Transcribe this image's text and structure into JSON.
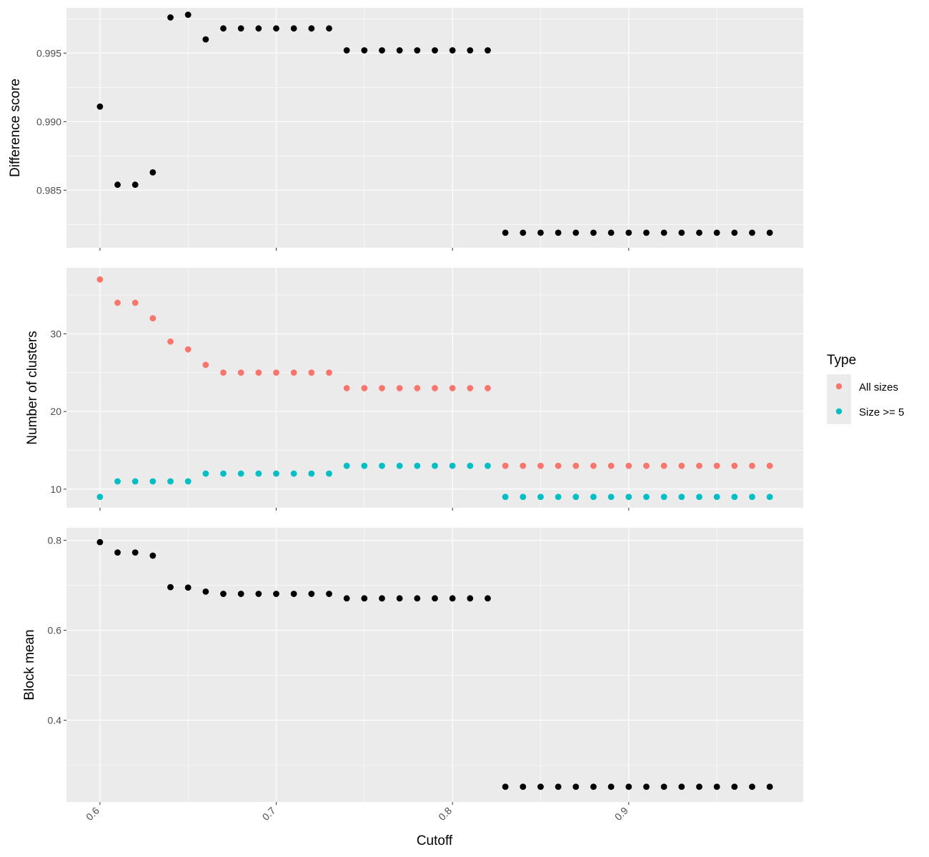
{
  "chart_data": [
    {
      "type": "scatter",
      "panel": "difference",
      "ylabel": "Difference score",
      "yticks": [
        0.985,
        0.99,
        0.995
      ],
      "ytick_labels": [
        "0.985",
        "0.990",
        "0.995"
      ],
      "ylim": [
        0.9808,
        0.9983
      ],
      "color": "#000000",
      "x": [
        0.6,
        0.61,
        0.62,
        0.63,
        0.64,
        0.65,
        0.66,
        0.67,
        0.68,
        0.69,
        0.7,
        0.71,
        0.72,
        0.73,
        0.74,
        0.75,
        0.76,
        0.77,
        0.78,
        0.79,
        0.8,
        0.81,
        0.82,
        0.83,
        0.84,
        0.85,
        0.86,
        0.87,
        0.88,
        0.89,
        0.9,
        0.91,
        0.92,
        0.93,
        0.94,
        0.95,
        0.96,
        0.97,
        0.98
      ],
      "y": [
        0.9911,
        0.9854,
        0.9854,
        0.9863,
        0.9976,
        0.9978,
        0.996,
        0.9968,
        0.9968,
        0.9968,
        0.9968,
        0.9968,
        0.9968,
        0.9968,
        0.9952,
        0.9952,
        0.9952,
        0.9952,
        0.9952,
        0.9952,
        0.9952,
        0.9952,
        0.9952,
        0.9819,
        0.9819,
        0.9819,
        0.9819,
        0.9819,
        0.9819,
        0.9819,
        0.9819,
        0.9819,
        0.9819,
        0.9819,
        0.9819,
        0.9819,
        0.9819,
        0.9819,
        0.9819
      ]
    },
    {
      "type": "scatter",
      "panel": "clusters",
      "ylabel": "Number of clusters",
      "yticks": [
        10,
        20,
        30
      ],
      "ytick_labels": [
        "10",
        "20",
        "30"
      ],
      "ylim": [
        7.6,
        38.5
      ],
      "series": [
        {
          "name": "All sizes",
          "color": "#F8766D",
          "x": [
            0.6,
            0.61,
            0.62,
            0.63,
            0.64,
            0.65,
            0.66,
            0.67,
            0.68,
            0.69,
            0.7,
            0.71,
            0.72,
            0.73,
            0.74,
            0.75,
            0.76,
            0.77,
            0.78,
            0.79,
            0.8,
            0.81,
            0.82,
            0.83,
            0.84,
            0.85,
            0.86,
            0.87,
            0.88,
            0.89,
            0.9,
            0.91,
            0.92,
            0.93,
            0.94,
            0.95,
            0.96,
            0.97,
            0.98
          ],
          "y": [
            37,
            34,
            34,
            32,
            29,
            28,
            26,
            25,
            25,
            25,
            25,
            25,
            25,
            25,
            23,
            23,
            23,
            23,
            23,
            23,
            23,
            23,
            23,
            13,
            13,
            13,
            13,
            13,
            13,
            13,
            13,
            13,
            13,
            13,
            13,
            13,
            13,
            13,
            13
          ]
        },
        {
          "name": "Size >= 5",
          "color": "#00BFC4",
          "x": [
            0.6,
            0.61,
            0.62,
            0.63,
            0.64,
            0.65,
            0.66,
            0.67,
            0.68,
            0.69,
            0.7,
            0.71,
            0.72,
            0.73,
            0.74,
            0.75,
            0.76,
            0.77,
            0.78,
            0.79,
            0.8,
            0.81,
            0.82,
            0.83,
            0.84,
            0.85,
            0.86,
            0.87,
            0.88,
            0.89,
            0.9,
            0.91,
            0.92,
            0.93,
            0.94,
            0.95,
            0.96,
            0.97,
            0.98
          ],
          "y": [
            9,
            11,
            11,
            11,
            11,
            11,
            12,
            12,
            12,
            12,
            12,
            12,
            12,
            12,
            13,
            13,
            13,
            13,
            13,
            13,
            13,
            13,
            13,
            9,
            9,
            9,
            9,
            9,
            9,
            9,
            9,
            9,
            9,
            9,
            9,
            9,
            9,
            9,
            9
          ]
        }
      ]
    },
    {
      "type": "scatter",
      "panel": "block",
      "ylabel": "Block mean",
      "yticks": [
        0.4,
        0.6,
        0.8
      ],
      "ytick_labels": [
        "0.4",
        "0.6",
        "0.8"
      ],
      "ylim": [
        0.218,
        0.828
      ],
      "color": "#000000",
      "x": [
        0.6,
        0.61,
        0.62,
        0.63,
        0.64,
        0.65,
        0.66,
        0.67,
        0.68,
        0.69,
        0.7,
        0.71,
        0.72,
        0.73,
        0.74,
        0.75,
        0.76,
        0.77,
        0.78,
        0.79,
        0.8,
        0.81,
        0.82,
        0.83,
        0.84,
        0.85,
        0.86,
        0.87,
        0.88,
        0.89,
        0.9,
        0.91,
        0.92,
        0.93,
        0.94,
        0.95,
        0.96,
        0.97,
        0.98
      ],
      "y": [
        0.796,
        0.773,
        0.773,
        0.766,
        0.696,
        0.695,
        0.686,
        0.681,
        0.681,
        0.681,
        0.681,
        0.681,
        0.681,
        0.681,
        0.671,
        0.671,
        0.671,
        0.671,
        0.671,
        0.671,
        0.671,
        0.671,
        0.671,
        0.252,
        0.252,
        0.252,
        0.252,
        0.252,
        0.252,
        0.252,
        0.252,
        0.252,
        0.252,
        0.252,
        0.252,
        0.252,
        0.252,
        0.252,
        0.252
      ]
    }
  ],
  "x_axis": {
    "label": "Cutoff",
    "ticks": [
      0.6,
      0.7,
      0.8,
      0.9
    ],
    "tick_labels": [
      "0.6",
      "0.7",
      "0.8",
      "0.9"
    ],
    "xlim": [
      0.581,
      0.999
    ]
  },
  "legend": {
    "title": "Type",
    "position": "right",
    "items": [
      {
        "label": "All sizes",
        "color": "#F8766D"
      },
      {
        "label": "Size >= 5",
        "color": "#00BFC4"
      }
    ]
  },
  "style": {
    "panel_background": "#EBEBEB",
    "grid_major": "#FFFFFF",
    "point_color": "#000000"
  }
}
